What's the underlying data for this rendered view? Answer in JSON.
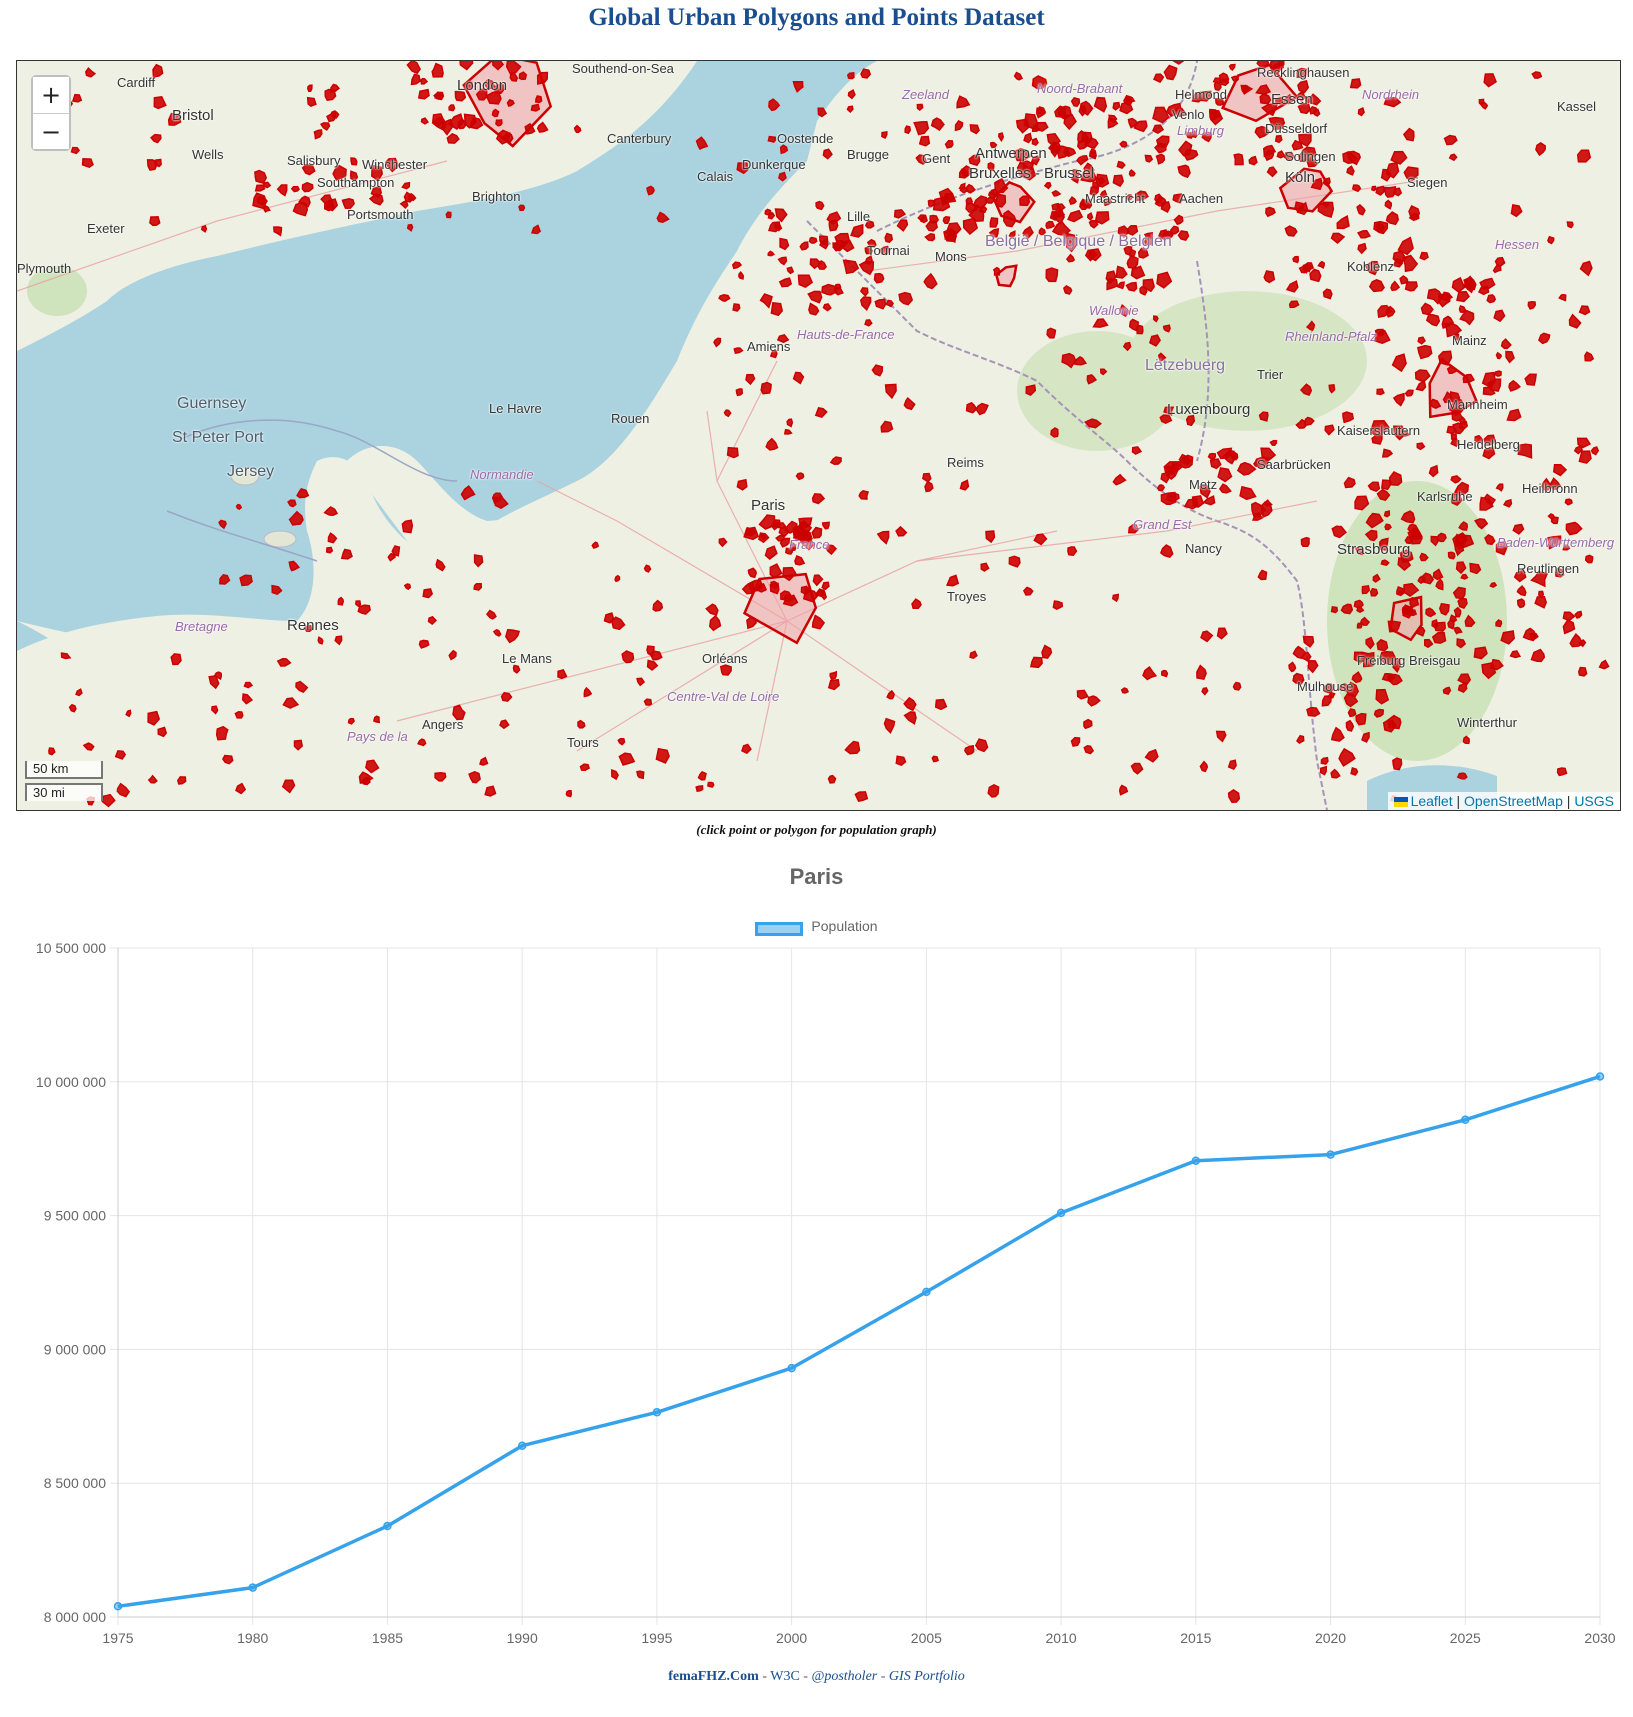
{
  "page": {
    "title": "Global Urban Polygons and Points Dataset",
    "hint": "(click point or polygon for population graph)"
  },
  "map": {
    "zoom_in_label": "+",
    "zoom_out_label": "−",
    "scale_km": "50 km",
    "scale_mi": "30 mi",
    "attribution": {
      "leaflet": "Leaflet",
      "osm": "OpenStreetMap",
      "usgs": "USGS",
      "separator": "|"
    },
    "colors": {
      "sea": "#aad3df",
      "land": "#eef0e4",
      "urban_stroke": "#cc0000",
      "urban_fill": "#f2a0a6"
    },
    "places": [
      {
        "name": "London"
      },
      {
        "name": "Southend-on-Sea"
      },
      {
        "name": "Bristol"
      },
      {
        "name": "Wells"
      },
      {
        "name": "Salisbury"
      },
      {
        "name": "Winchester"
      },
      {
        "name": "Southampton"
      },
      {
        "name": "Portsmouth"
      },
      {
        "name": "Brighton"
      },
      {
        "name": "Exeter"
      },
      {
        "name": "Canterbury"
      },
      {
        "name": "Oostende"
      },
      {
        "name": "Dunkerque"
      },
      {
        "name": "Calais"
      },
      {
        "name": "Brugge"
      },
      {
        "name": "Gent"
      },
      {
        "name": "Antwerpen"
      },
      {
        "name": "Bruxelles - Brussel"
      },
      {
        "name": "Lille"
      },
      {
        "name": "Tournai"
      },
      {
        "name": "Mons"
      },
      {
        "name": "België / Belgique / Belgien"
      },
      {
        "name": "Maastricht"
      },
      {
        "name": "Wallonie"
      },
      {
        "name": "Hauts-de-France"
      },
      {
        "name": "Amiens"
      },
      {
        "name": "Guernsey"
      },
      {
        "name": "St Peter Port"
      },
      {
        "name": "Jersey"
      },
      {
        "name": "Le Havre"
      },
      {
        "name": "Rouen"
      },
      {
        "name": "Normandie"
      },
      {
        "name": "Paris"
      },
      {
        "name": "France"
      },
      {
        "name": "Reims"
      },
      {
        "name": "Grand Est"
      },
      {
        "name": "Troyes"
      },
      {
        "name": "Bretagne"
      },
      {
        "name": "Rennes"
      },
      {
        "name": "Le Mans"
      },
      {
        "name": "Orléans"
      },
      {
        "name": "Centre-Val de Loire"
      },
      {
        "name": "Angers"
      },
      {
        "name": "Pays de la"
      },
      {
        "name": "Tours"
      },
      {
        "name": "Lëtzebuerg"
      },
      {
        "name": "Luxembourg"
      },
      {
        "name": "Metz"
      },
      {
        "name": "Nancy"
      },
      {
        "name": "Strasbourg"
      },
      {
        "name": "Mulhouse"
      },
      {
        "name": "Freiburg Breisgau"
      },
      {
        "name": "Saarbrücken"
      },
      {
        "name": "Kaiserslautern"
      },
      {
        "name": "Mannheim"
      },
      {
        "name": "Karlsruhe"
      },
      {
        "name": "Rheinland-Pfalz"
      },
      {
        "name": "Koblenz"
      },
      {
        "name": "Mainz"
      },
      {
        "name": "Siegen"
      },
      {
        "name": "Hessen"
      },
      {
        "name": "Kassel"
      },
      {
        "name": "Köln"
      },
      {
        "name": "Essen"
      },
      {
        "name": "Recklinghausen"
      },
      {
        "name": "Nordrhein"
      },
      {
        "name": "Helmond"
      },
      {
        "name": "Venlo"
      },
      {
        "name": "Limburg"
      },
      {
        "name": "Aachen"
      },
      {
        "name": "Heilbronn"
      },
      {
        "name": "Reutlingen"
      },
      {
        "name": "Baden-Württemberg"
      },
      {
        "name": "Zeeland"
      },
      {
        "name": "Noord-Brabant"
      },
      {
        "name": "Trier"
      },
      {
        "name": "Cardiff"
      },
      {
        "name": "Plymouth"
      },
      {
        "name": "Düsseldorf"
      },
      {
        "name": "Solingen"
      },
      {
        "name": "Heidelberg"
      },
      {
        "name": "Winterthur"
      }
    ]
  },
  "chart_data": {
    "type": "line",
    "title": "Paris",
    "xlabel": "",
    "ylabel": "",
    "x": [
      "1975",
      "1980",
      "1985",
      "1990",
      "1995",
      "2000",
      "2005",
      "2010",
      "2015",
      "2020",
      "2025",
      "2030"
    ],
    "series": [
      {
        "name": "Population",
        "color": "#36a2eb",
        "values": [
          8040000,
          8110000,
          8340000,
          8640000,
          8765000,
          8930000,
          9215000,
          9510000,
          9705000,
          9728000,
          9858000,
          10020000
        ]
      }
    ],
    "ylim": [
      8000000,
      10500000
    ],
    "yticks": [
      "8 000 000",
      "8 500 000",
      "9 000 000",
      "9 500 000",
      "10 000 000",
      "10 500 000"
    ],
    "ytick_values": [
      8000000,
      8500000,
      9000000,
      9500000,
      10000000,
      10500000
    ],
    "grid": true,
    "legend": "top-center"
  },
  "footer": {
    "brand": "femaFHZ.Com",
    "sep1": " - ",
    "w3c": "W3C",
    "sep2": " - ",
    "handle": "@postholer",
    "sep3": " - ",
    "portfolio": "GIS Portfolio"
  }
}
